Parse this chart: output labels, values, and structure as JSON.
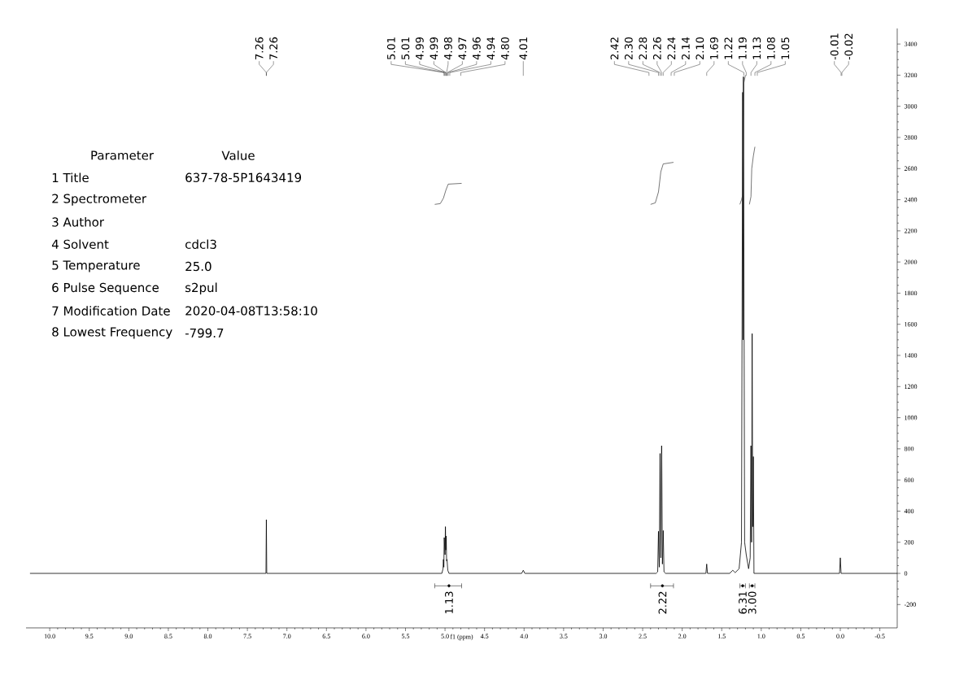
{
  "chart_data": {
    "type": "line",
    "xlabel": "f1 (ppm)",
    "xlim": [
      10.3,
      -0.72
    ],
    "ylim": [
      -350,
      3500
    ],
    "xticks": [
      {
        "value": 10,
        "label": "10.0"
      },
      9.5,
      {
        "value": 9,
        "label": "9.0"
      },
      8.5,
      {
        "value": 8,
        "label": "8.0"
      },
      7.5,
      {
        "value": 7,
        "label": "7.0"
      },
      6.5,
      {
        "value": 6,
        "label": "6.0"
      },
      5.5,
      {
        "value": 5,
        "label": "5.0"
      },
      4.5,
      {
        "value": 4,
        "label": "4.0"
      },
      3.5,
      {
        "value": 3,
        "label": "3.0"
      },
      2.5,
      {
        "value": 2,
        "label": "2.0"
      },
      1.5,
      {
        "value": 1,
        "label": "1.0"
      },
      0.5,
      {
        "value": 0,
        "label": "0.0"
      },
      -0.5
    ],
    "yticks": [
      -200,
      0,
      200,
      400,
      600,
      800,
      1000,
      1200,
      1400,
      1600,
      1800,
      2000,
      2200,
      2400,
      2600,
      2800,
      3000,
      3200,
      3400
    ],
    "marker": "none",
    "line_style": "solid",
    "series": [
      {
        "color": "#000000",
        "x": [
          10.25,
          7.28,
          7.265,
          7.26,
          7.255,
          5.04,
          5.025,
          5.02,
          5.015,
          5.01,
          5.0,
          4.995,
          4.99,
          4.985,
          4.98,
          4.975,
          4.965,
          4.95,
          4.03,
          4.01,
          3.99,
          2.33,
          2.31,
          2.3,
          2.29,
          2.28,
          2.27,
          2.26,
          2.25,
          2.24,
          2.23,
          2.21,
          1.7,
          1.69,
          1.68,
          1.4,
          1.36,
          1.33,
          1.28,
          1.25,
          1.235,
          1.23,
          1.225,
          1.21,
          1.19,
          1.16,
          1.14,
          1.13,
          1.122,
          1.115,
          1.108,
          1.1,
          1.092,
          0.01,
          0.0,
          -0.01,
          -0.72
        ],
        "values": [
          0,
          0,
          0,
          345,
          0,
          0,
          30,
          90,
          40,
          230,
          120,
          300,
          150,
          240,
          80,
          90,
          20,
          0,
          0,
          20,
          0,
          0,
          10,
          270,
          40,
          770,
          100,
          820,
          60,
          275,
          10,
          0,
          0,
          60,
          0,
          0,
          20,
          5,
          30,
          200,
          3090,
          1500,
          3190,
          200,
          120,
          30,
          100,
          820,
          200,
          1540,
          300,
          750,
          0,
          0,
          100,
          0,
          0
        ]
      },
      {
        "color": "#3c3c3c",
        "x": [
          5.13,
          5.06,
          5.02,
          4.99,
          4.96,
          4.79
        ],
        "values": [
          2370,
          2375,
          2410,
          2460,
          2500,
          2505
        ]
      },
      {
        "color": "#3c3c3c",
        "x": [
          2.4,
          2.34,
          2.3,
          2.27,
          2.24,
          2.11
        ],
        "values": [
          2370,
          2380,
          2450,
          2580,
          2630,
          2640
        ]
      },
      {
        "color": "#3c3c3c",
        "x": [
          1.27,
          1.25,
          1.235,
          1.22,
          1.2
        ],
        "values": [
          2370,
          2400,
          2430,
          3150,
          3200
        ]
      },
      {
        "color": "#3c3c3c",
        "x": [
          1.15,
          1.13,
          1.12,
          1.1,
          1.08
        ],
        "values": [
          2370,
          2420,
          2600,
          2680,
          2740
        ]
      },
      {
        "type": "scatter",
        "color": "#000000",
        "x": [
          4.95,
          2.25,
          1.235,
          1.115
        ],
        "values": [
          -80,
          -80,
          -80,
          -80
        ],
        "xerrors": [
          [
            4.79,
            5.13
          ],
          [
            2.11,
            2.4
          ],
          [
            1.2,
            1.27
          ],
          [
            1.08,
            1.15
          ]
        ]
      }
    ],
    "annotations": [
      {
        "text": "7.26",
        "x": 7.26
      },
      {
        "text": "7.26",
        "x": 7.26
      },
      {
        "text": "5.01",
        "x": 5.01
      },
      {
        "text": "5.01",
        "x": 5.01
      },
      {
        "text": "4.99",
        "x": 4.99
      },
      {
        "text": "4.99",
        "x": 4.99
      },
      {
        "text": "4.98",
        "x": 4.98
      },
      {
        "text": "4.97",
        "x": 4.97
      },
      {
        "text": "4.96",
        "x": 4.96
      },
      {
        "text": "4.94",
        "x": 4.94
      },
      {
        "text": "4.80",
        "x": 4.8
      },
      {
        "text": "4.01",
        "x": 4.01
      },
      {
        "text": "2.42",
        "x": 2.42
      },
      {
        "text": "2.30",
        "x": 2.3
      },
      {
        "text": "2.28",
        "x": 2.28
      },
      {
        "text": "2.26",
        "x": 2.26
      },
      {
        "text": "2.24",
        "x": 2.24
      },
      {
        "text": "2.14",
        "x": 2.14
      },
      {
        "text": "2.10",
        "x": 2.1
      },
      {
        "text": "1.69",
        "x": 1.69
      },
      {
        "text": "1.22",
        "x": 1.22
      },
      {
        "text": "1.19",
        "x": 1.19
      },
      {
        "text": "1.13",
        "x": 1.13
      },
      {
        "text": "1.08",
        "x": 1.08
      },
      {
        "text": "1.05",
        "x": 1.05
      },
      {
        "text": "-0.01",
        "x": -0.01
      },
      {
        "text": "-0.02",
        "x": -0.02
      },
      {
        "text": "1.13",
        "x": 4.95,
        "y": -80
      },
      {
        "text": "2.22",
        "x": 2.25,
        "y": -80
      },
      {
        "text": "6.31",
        "x": 1.235,
        "y": -80
      },
      {
        "text": "3.00",
        "x": 1.115,
        "y": -80
      },
      "Parameter",
      "Value",
      "1 Title",
      "637-78-5P1643419",
      "2 Spectrometer",
      "3 Author",
      "4 Solvent",
      "cdcl3",
      "5 Temperature",
      "25.0",
      "6 Pulse Sequence",
      "s2pul",
      "7 Modification Date",
      "2020-04-08T13:58:10",
      "8 Lowest Frequency",
      "-799.7"
    ]
  }
}
